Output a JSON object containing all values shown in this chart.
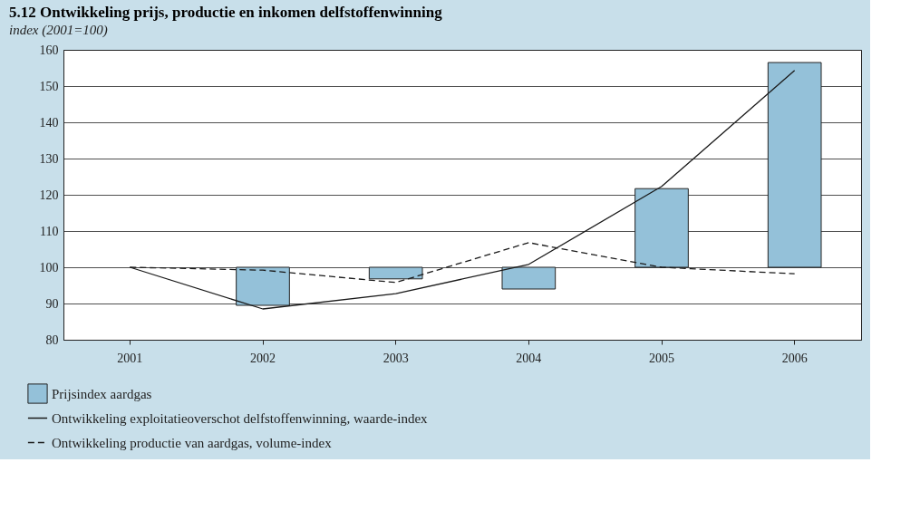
{
  "chart_data": {
    "type": "bar",
    "title": "5.12 Ontwikkeling prijs, productie en inkomen delfstoffenwinning",
    "ylabel": "index (2001=100)",
    "categories": [
      "2001",
      "2002",
      "2003",
      "2004",
      "2005",
      "2006"
    ],
    "series": [
      {
        "name": "Prijsindex aardgas",
        "color": "#94c1d9",
        "base": [
          null,
          100,
          100,
          100,
          100,
          100
        ],
        "values": [
          null,
          -10.5,
          -3.2,
          -6.0,
          21.7,
          56.5
        ]
      },
      {
        "name": "Ontwikkeling exploitatieoverschot delfstoffenwinning, waarde-index",
        "type": "line",
        "line_style": "solid",
        "color": "#1a1a1a",
        "values": [
          100,
          88.5,
          92.7,
          100.8,
          122.3,
          154.3
        ]
      },
      {
        "name": "Ontwikkeling productie van aardgas, volume-index",
        "type": "line",
        "line_style": "dashed",
        "color": "#1a1a1a",
        "values": [
          100,
          99.2,
          95.8,
          106.8,
          100,
          98.2
        ]
      }
    ],
    "ylim": [
      80,
      160
    ],
    "yticks": [
      80,
      90,
      100,
      110,
      120,
      130,
      140,
      150,
      160
    ],
    "grid": "y",
    "legend": "bottom left"
  }
}
